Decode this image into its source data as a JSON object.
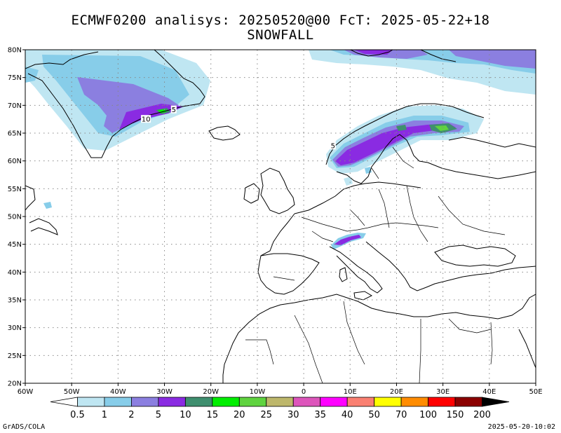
{
  "titles": {
    "line1": "ECMWF0200 analisys: 20250520@00 FcT: 2025-05-22+18",
    "line2": "SNOWFALL"
  },
  "map": {
    "lon_range": [
      -60,
      50
    ],
    "lat_range": [
      20,
      80
    ],
    "lon_ticks": [
      {
        "value": -60,
        "label": "60W"
      },
      {
        "value": -50,
        "label": "50W"
      },
      {
        "value": -40,
        "label": "40W"
      },
      {
        "value": -30,
        "label": "30W"
      },
      {
        "value": -20,
        "label": "20W"
      },
      {
        "value": -10,
        "label": "10W"
      },
      {
        "value": 0,
        "label": "0"
      },
      {
        "value": 10,
        "label": "10E"
      },
      {
        "value": 20,
        "label": "20E"
      },
      {
        "value": 30,
        "label": "30E"
      },
      {
        "value": 40,
        "label": "40E"
      },
      {
        "value": 50,
        "label": "50E"
      }
    ],
    "lat_ticks": [
      {
        "value": 20,
        "label": "20N"
      },
      {
        "value": 25,
        "label": "25N"
      },
      {
        "value": 30,
        "label": "30N"
      },
      {
        "value": 35,
        "label": "35N"
      },
      {
        "value": 40,
        "label": "40N"
      },
      {
        "value": 45,
        "label": "45N"
      },
      {
        "value": 50,
        "label": "50N"
      },
      {
        "value": 55,
        "label": "55N"
      },
      {
        "value": 60,
        "label": "60N"
      },
      {
        "value": 65,
        "label": "65N"
      },
      {
        "value": 70,
        "label": "70N"
      },
      {
        "value": 75,
        "label": "75N"
      },
      {
        "value": 80,
        "label": "80N"
      }
    ],
    "contour_labels": [
      {
        "text": "10",
        "lon": -34,
        "lat": 67.5
      },
      {
        "text": "5",
        "lon": -28,
        "lat": 69.2
      },
      {
        "text": "5",
        "lon": 6.3,
        "lat": 62.7
      }
    ]
  },
  "colorbar": {
    "labels": [
      "0.5",
      "1",
      "2",
      "5",
      "10",
      "15",
      "20",
      "25",
      "30",
      "35",
      "40",
      "50",
      "70",
      "100",
      "150",
      "200"
    ],
    "colors": [
      "#ffffff",
      "#bfe6f2",
      "#87cde9",
      "#8b7fe0",
      "#8a2be2",
      "#3f8f6f",
      "#00ee00",
      "#5fd33f",
      "#bdb76b",
      "#dd55bb",
      "#ff00ff",
      "#fa8072",
      "#ffff00",
      "#ff8c00",
      "#ff0000",
      "#8b0000",
      "#000000"
    ]
  },
  "footer": {
    "left": "GrADS/COLA",
    "right": "2025-05-20-10:02"
  }
}
